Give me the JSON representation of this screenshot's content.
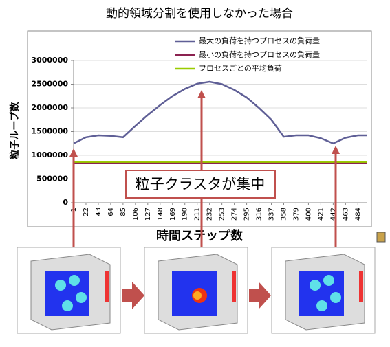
{
  "chart_data": {
    "type": "line",
    "title": "動的領域分割を使用しなかった場合",
    "x_label": "時間ステップ数",
    "y_label": "粒子ループ数",
    "annotation": "粒子クラスタが集中",
    "xlim": [
      1,
      500
    ],
    "xticks": [
      1,
      22,
      43,
      64,
      85,
      106,
      127,
      148,
      169,
      190,
      211,
      232,
      253,
      274,
      295,
      316,
      337,
      358,
      379,
      400,
      421,
      442,
      463,
      484
    ],
    "ylim": [
      0,
      3000000
    ],
    "yticks": [
      0,
      500000,
      1000000,
      1500000,
      2000000,
      2500000,
      3000000
    ],
    "grid": true,
    "legend": "top-right",
    "series": [
      {
        "name": "最大の負荷を持つプロセスの負荷量",
        "color": "#5f5f96",
        "x": [
          1,
          22,
          43,
          64,
          85,
          106,
          127,
          148,
          169,
          190,
          211,
          232,
          253,
          274,
          295,
          316,
          337,
          358,
          379,
          400,
          421,
          442,
          463,
          484,
          500
        ],
        "values": [
          1250000,
          1380000,
          1420000,
          1410000,
          1380000,
          1620000,
          1850000,
          2060000,
          2250000,
          2400000,
          2510000,
          2550000,
          2500000,
          2380000,
          2220000,
          2000000,
          1750000,
          1390000,
          1420000,
          1420000,
          1360000,
          1250000,
          1370000,
          1420000,
          1420000
        ]
      },
      {
        "name": "最小の負荷を持つプロセスの負荷量",
        "color": "#8b2250",
        "x": [
          1,
          500
        ],
        "values": [
          830000,
          830000
        ]
      },
      {
        "name": "プロセスごとの平均負荷",
        "color": "#99cc00",
        "x": [
          1,
          500
        ],
        "values": [
          860000,
          860000
        ]
      }
    ]
  }
}
